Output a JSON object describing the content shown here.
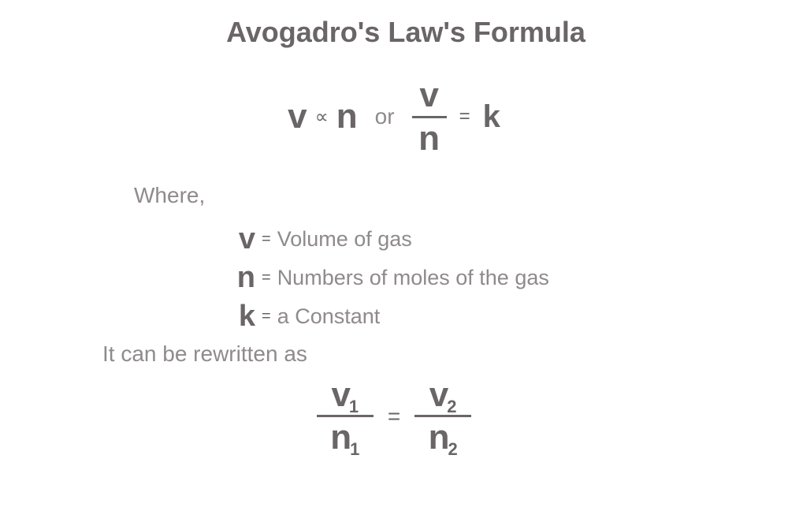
{
  "colors": {
    "title": "#6a6567",
    "bold_var": "#6a6567",
    "light_text": "#8f8a8c",
    "background": "#ffffff",
    "frac_line": "#6a6567"
  },
  "typography": {
    "title_fontsize": 36,
    "var_fontsize": 44,
    "body_fontsize": 28,
    "def_fontsize": 27
  },
  "title": "Avogadro's Law's Formula",
  "formula1": {
    "left_v": "v",
    "proportional_symbol": "∝",
    "left_n": "n",
    "or_label": "or",
    "frac_num": "v",
    "frac_den": "n",
    "eq_symbol": "=",
    "right_k": "k"
  },
  "where_label": "Where,",
  "definitions": [
    {
      "var": "v",
      "desc": "Volume of gas"
    },
    {
      "var": "n",
      "desc": "Numbers of moles of the gas"
    },
    {
      "var": "k",
      "desc": "a Constant"
    }
  ],
  "eq_small": "=",
  "rewrite_label": "It can be rewritten as",
  "formula2": {
    "v_label": "v",
    "n_label": "n",
    "sub1": "1",
    "sub2": "2",
    "eq_symbol": "="
  }
}
